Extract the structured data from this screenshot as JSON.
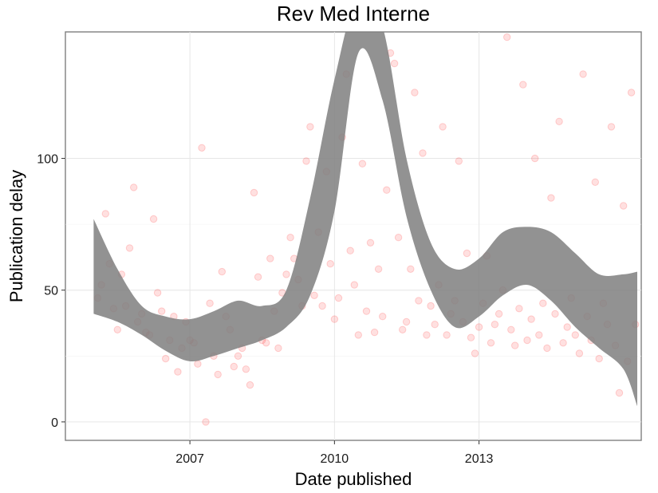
{
  "chart_data": {
    "type": "scatter",
    "title": "Rev Med Interne",
    "xlabel": "Date published",
    "ylabel": "Publication delay",
    "x_type": "date",
    "xlim": [
      "2004-06-01",
      "2016-05-15"
    ],
    "ylim": [
      -7,
      148
    ],
    "x_ticks": [
      {
        "value": "2007-01-01",
        "label": "2007"
      },
      {
        "value": "2010-01-01",
        "label": "2010"
      },
      {
        "value": "2013-01-01",
        "label": "2013"
      }
    ],
    "y_ticks": [
      {
        "value": 0,
        "label": "0"
      },
      {
        "value": 50,
        "label": "50"
      },
      {
        "value": 100,
        "label": "100"
      }
    ],
    "grid": true,
    "legend": "none",
    "point_color": "#ff0000",
    "point_opacity": 0.12,
    "band_color": "#7f7f7f",
    "series": [
      {
        "type": "scatter",
        "points": [
          [
            "2005-02-01",
            47
          ],
          [
            "2005-03-01",
            52
          ],
          [
            "2005-04-01",
            79
          ],
          [
            "2005-05-01",
            60
          ],
          [
            "2005-06-01",
            43
          ],
          [
            "2005-07-01",
            35
          ],
          [
            "2005-08-01",
            56
          ],
          [
            "2005-09-01",
            44
          ],
          [
            "2005-10-01",
            66
          ],
          [
            "2005-11-01",
            89
          ],
          [
            "2005-12-01",
            38
          ],
          [
            "2006-01-01",
            41
          ],
          [
            "2006-02-01",
            34
          ],
          [
            "2006-03-01",
            33
          ],
          [
            "2006-04-01",
            77
          ],
          [
            "2006-05-01",
            49
          ],
          [
            "2006-06-01",
            42
          ],
          [
            "2006-07-01",
            24
          ],
          [
            "2006-08-01",
            31
          ],
          [
            "2006-09-01",
            40
          ],
          [
            "2006-10-01",
            19
          ],
          [
            "2006-11-01",
            28
          ],
          [
            "2006-12-01",
            38
          ],
          [
            "2007-01-01",
            31
          ],
          [
            "2007-02-01",
            30
          ],
          [
            "2007-03-01",
            22
          ],
          [
            "2007-04-01",
            104
          ],
          [
            "2007-05-01",
            0
          ],
          [
            "2007-06-01",
            45
          ],
          [
            "2007-07-01",
            25
          ],
          [
            "2007-08-01",
            18
          ],
          [
            "2007-09-01",
            57
          ],
          [
            "2007-10-01",
            40
          ],
          [
            "2007-11-01",
            35
          ],
          [
            "2007-12-01",
            21
          ],
          [
            "2008-01-01",
            25
          ],
          [
            "2008-02-01",
            28
          ],
          [
            "2008-03-01",
            20
          ],
          [
            "2008-04-01",
            14
          ],
          [
            "2008-05-01",
            87
          ],
          [
            "2008-06-01",
            55
          ],
          [
            "2008-07-01",
            31
          ],
          [
            "2008-08-01",
            30
          ],
          [
            "2008-09-01",
            62
          ],
          [
            "2008-10-01",
            42
          ],
          [
            "2008-11-01",
            28
          ],
          [
            "2008-12-01",
            49
          ],
          [
            "2009-01-01",
            56
          ],
          [
            "2009-02-01",
            70
          ],
          [
            "2009-03-01",
            62
          ],
          [
            "2009-04-01",
            54
          ],
          [
            "2009-05-01",
            44
          ],
          [
            "2009-06-01",
            99
          ],
          [
            "2009-07-01",
            112
          ],
          [
            "2009-08-01",
            48
          ],
          [
            "2009-09-01",
            72
          ],
          [
            "2009-10-01",
            44
          ],
          [
            "2009-11-01",
            95
          ],
          [
            "2009-12-01",
            60
          ],
          [
            "2010-01-01",
            39
          ],
          [
            "2010-02-01",
            47
          ],
          [
            "2010-03-01",
            108
          ],
          [
            "2010-04-01",
            132
          ],
          [
            "2010-05-01",
            65
          ],
          [
            "2010-06-01",
            52
          ],
          [
            "2010-07-01",
            33
          ],
          [
            "2010-08-01",
            98
          ],
          [
            "2010-09-01",
            42
          ],
          [
            "2010-10-01",
            68
          ],
          [
            "2010-11-01",
            34
          ],
          [
            "2010-12-01",
            58
          ],
          [
            "2011-01-01",
            40
          ],
          [
            "2011-02-01",
            88
          ],
          [
            "2011-03-01",
            140
          ],
          [
            "2011-04-01",
            136
          ],
          [
            "2011-05-01",
            70
          ],
          [
            "2011-06-01",
            35
          ],
          [
            "2011-07-01",
            38
          ],
          [
            "2011-08-01",
            58
          ],
          [
            "2011-09-01",
            125
          ],
          [
            "2011-10-01",
            46
          ],
          [
            "2011-11-01",
            102
          ],
          [
            "2011-12-01",
            33
          ],
          [
            "2012-01-01",
            44
          ],
          [
            "2012-02-01",
            37
          ],
          [
            "2012-03-01",
            52
          ],
          [
            "2012-04-01",
            112
          ],
          [
            "2012-05-01",
            33
          ],
          [
            "2012-06-01",
            41
          ],
          [
            "2012-07-01",
            46
          ],
          [
            "2012-08-01",
            99
          ],
          [
            "2012-09-01",
            38
          ],
          [
            "2012-10-01",
            64
          ],
          [
            "2012-11-01",
            32
          ],
          [
            "2012-12-01",
            26
          ],
          [
            "2013-01-01",
            36
          ],
          [
            "2013-02-01",
            45
          ],
          [
            "2013-03-01",
            63
          ],
          [
            "2013-04-01",
            30
          ],
          [
            "2013-05-01",
            37
          ],
          [
            "2013-06-01",
            41
          ],
          [
            "2013-07-01",
            50
          ],
          [
            "2013-08-01",
            146
          ],
          [
            "2013-09-01",
            35
          ],
          [
            "2013-10-01",
            29
          ],
          [
            "2013-11-01",
            43
          ],
          [
            "2013-12-01",
            128
          ],
          [
            "2014-01-01",
            31
          ],
          [
            "2014-02-01",
            39
          ],
          [
            "2014-03-01",
            100
          ],
          [
            "2014-04-01",
            33
          ],
          [
            "2014-05-01",
            45
          ],
          [
            "2014-06-01",
            28
          ],
          [
            "2014-07-01",
            85
          ],
          [
            "2014-08-01",
            41
          ],
          [
            "2014-09-01",
            114
          ],
          [
            "2014-10-01",
            30
          ],
          [
            "2014-11-01",
            36
          ],
          [
            "2014-12-01",
            47
          ],
          [
            "2015-01-01",
            33
          ],
          [
            "2015-02-01",
            26
          ],
          [
            "2015-03-01",
            132
          ],
          [
            "2015-04-01",
            40
          ],
          [
            "2015-05-01",
            31
          ],
          [
            "2015-06-01",
            91
          ],
          [
            "2015-07-01",
            24
          ],
          [
            "2015-08-01",
            45
          ],
          [
            "2015-09-01",
            37
          ],
          [
            "2015-10-01",
            112
          ],
          [
            "2015-11-01",
            29
          ],
          [
            "2015-12-01",
            11
          ],
          [
            "2016-01-01",
            82
          ],
          [
            "2016-02-01",
            23
          ],
          [
            "2016-03-01",
            125
          ],
          [
            "2016-04-01",
            37
          ]
        ]
      },
      {
        "type": "band",
        "x": [
          "2005-01-01",
          "2005-07-01",
          "2006-01-01",
          "2006-07-01",
          "2007-01-01",
          "2007-07-01",
          "2008-01-01",
          "2008-07-01",
          "2009-01-01",
          "2009-07-01",
          "2010-01-01",
          "2010-07-01",
          "2011-01-01",
          "2011-07-01",
          "2012-01-01",
          "2012-07-01",
          "2013-01-01",
          "2013-07-01",
          "2014-01-01",
          "2014-07-01",
          "2015-01-01",
          "2015-07-01",
          "2016-01-01",
          "2016-04-15"
        ],
        "lower": [
          41,
          38,
          33,
          27,
          23,
          25,
          28,
          31,
          36,
          48,
          80,
          140,
          122,
          78,
          50,
          36,
          40,
          48,
          52,
          46,
          36,
          28,
          20,
          6
        ],
        "upper": [
          77,
          58,
          44,
          40,
          39,
          42,
          46,
          44,
          50,
          85,
          130,
          162,
          150,
          100,
          68,
          58,
          62,
          72,
          74,
          72,
          64,
          56,
          56,
          57
        ]
      }
    ]
  }
}
